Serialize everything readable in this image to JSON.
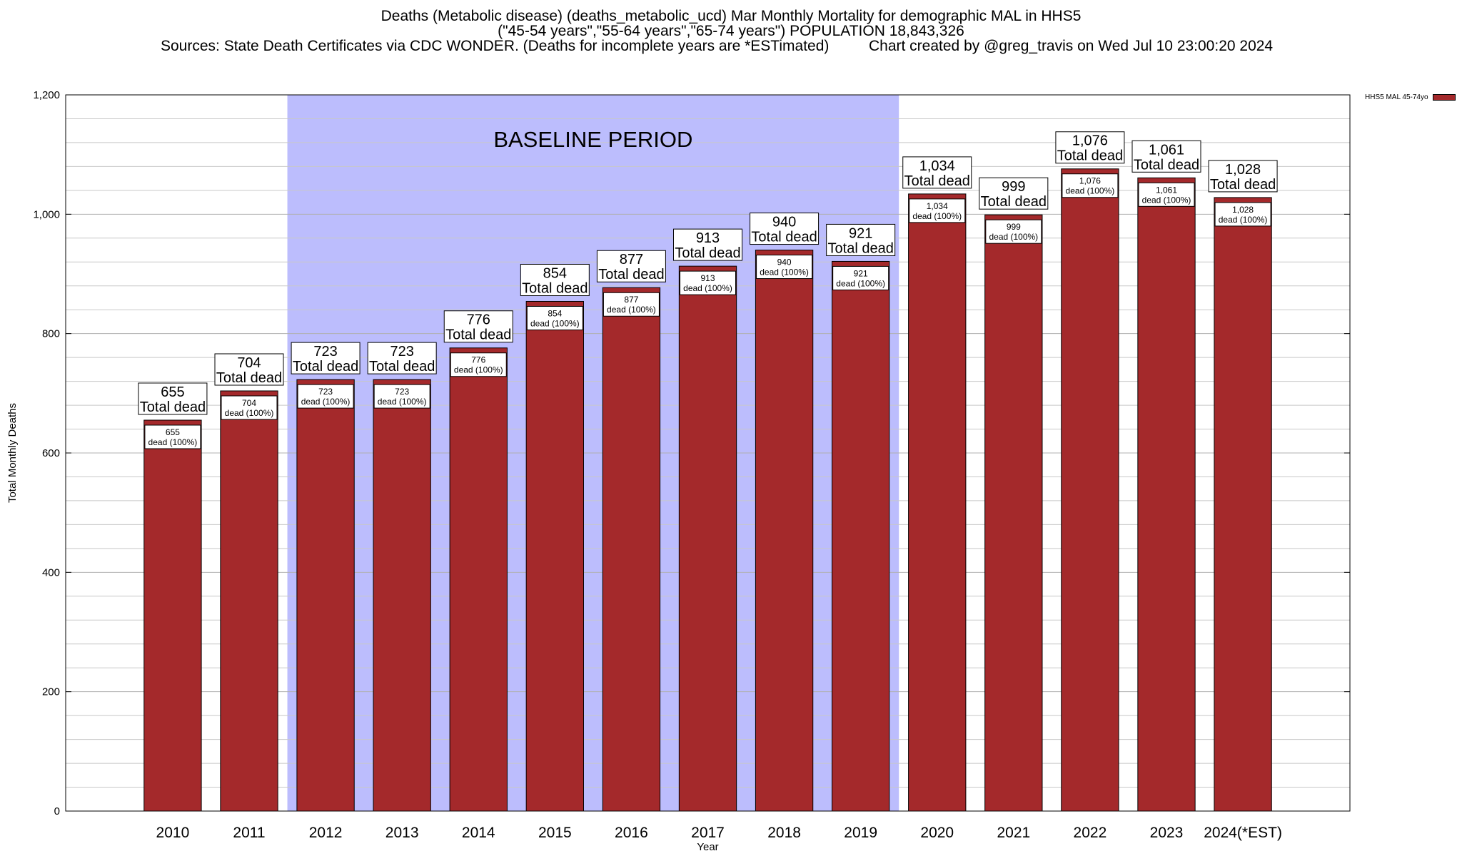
{
  "title": {
    "line1": "Deaths (Metabolic disease) (deaths_metabolic_ucd) Mar Monthly Mortality for demographic MAL in HHS5",
    "line2": "(\"45-54 years\",\"55-64 years\",\"65-74 years\") POPULATION 18,843,326",
    "sources": "Sources: State Death Certificates via CDC WONDER. (Deaths for incomplete years are *ESTimated)",
    "credit": "Chart created by @greg_travis on Wed Jul 10 23:00:20 2024"
  },
  "colors": {
    "bar": "#a4292b",
    "baseline_shade": "#bcbdfd",
    "grid": "#c8c8c8"
  },
  "chart_data": {
    "type": "bar",
    "title": "Deaths (Metabolic disease) (deaths_metabolic_ucd) Mar Monthly Mortality for demographic MAL in HHS5",
    "xlabel": "Year",
    "ylabel": "Total Monthly Deaths",
    "ylim": [
      0,
      1200
    ],
    "yticks": [
      0,
      200,
      400,
      600,
      800,
      1000,
      1200
    ],
    "ytick_labels": [
      "0",
      "200",
      "400",
      "600",
      "800",
      "1,000",
      "1,200"
    ],
    "grid": true,
    "legend_position": "top-right",
    "categories": [
      "2010",
      "2011",
      "2012",
      "2013",
      "2014",
      "2015",
      "2016",
      "2017",
      "2018",
      "2019",
      "2020",
      "2021",
      "2022",
      "2023",
      "2024(*EST)"
    ],
    "series": [
      {
        "name": "HHS5 MAL 45-74yo",
        "values": [
          655,
          704,
          723,
          723,
          776,
          854,
          877,
          913,
          940,
          921,
          1034,
          999,
          1076,
          1061,
          1028
        ]
      }
    ],
    "total_labels": [
      "655",
      "704",
      "723",
      "723",
      "776",
      "854",
      "877",
      "913",
      "940",
      "921",
      "1,034",
      "999",
      "1,076",
      "1,061",
      "1,028"
    ],
    "total_suffix": "Total dead",
    "inner_suffix": "dead (100%)",
    "baseline_period": {
      "label": "BASELINE PERIOD",
      "start_category": "2012",
      "end_category": "2019"
    }
  }
}
